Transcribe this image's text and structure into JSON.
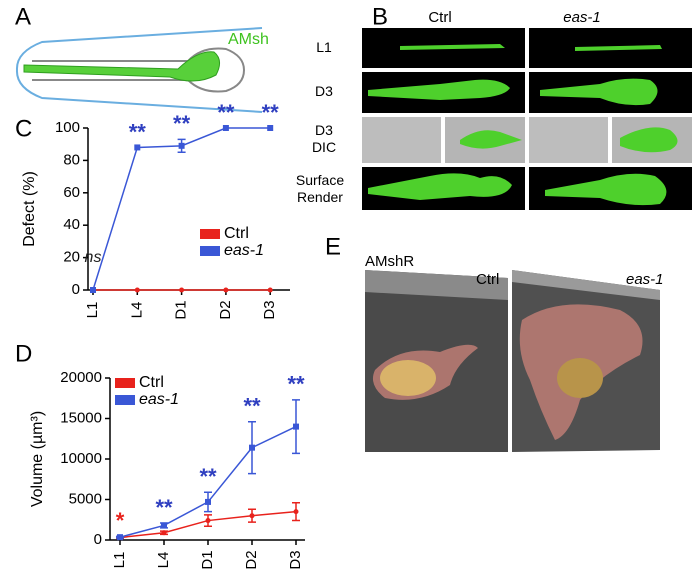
{
  "panel_labels": [
    "A",
    "B",
    "C",
    "D",
    "E"
  ],
  "panel_a": {
    "label": "AMsh"
  },
  "panel_b": {
    "columns": [
      "Ctrl",
      "eas-1"
    ],
    "rows": [
      "L1",
      "D3",
      "D3\nDIC",
      "Surface\nRender"
    ]
  },
  "panel_e": {
    "title": "AMshR",
    "columns": [
      "Ctrl",
      "eas-1"
    ]
  },
  "chart_data": [
    {
      "type": "line",
      "y_label": "Defect (%)",
      "categories": [
        "L1",
        "L4",
        "D1",
        "D2",
        "D3"
      ],
      "series": [
        {
          "name": "Ctrl",
          "color": "#e8221c",
          "values": [
            0,
            0,
            0,
            0,
            0
          ]
        },
        {
          "name": "eas-1",
          "color": "#3a57d6",
          "values": [
            0,
            88,
            89,
            100,
            100
          ],
          "errors": [
            0,
            0,
            4,
            0,
            0
          ]
        }
      ],
      "annotations": [
        {
          "category": "L1",
          "text": "ns",
          "color": "#222222"
        },
        {
          "category": "L4",
          "text": "**",
          "color": "#2f3fc0"
        },
        {
          "category": "D1",
          "text": "**",
          "color": "#2f3fc0"
        },
        {
          "category": "D2",
          "text": "**",
          "color": "#2f3fc0"
        },
        {
          "category": "D3",
          "text": "**",
          "color": "#2f3fc0"
        }
      ],
      "ylim": [
        0,
        100
      ],
      "yticks": [
        0,
        20,
        40,
        60,
        80,
        100
      ],
      "legend": "center right"
    },
    {
      "type": "line",
      "y_label": "Volume (µm³)",
      "categories": [
        "L1",
        "L4",
        "D1",
        "D2",
        "D3"
      ],
      "series": [
        {
          "name": "Ctrl",
          "color": "#e8221c",
          "values": [
            300,
            900,
            2400,
            3000,
            3500
          ],
          "errors": [
            100,
            200,
            700,
            800,
            1100
          ]
        },
        {
          "name": "eas-1",
          "color": "#3a57d6",
          "values": [
            350,
            1800,
            4700,
            11400,
            14000
          ],
          "errors": [
            100,
            300,
            1200,
            3200,
            3300
          ]
        }
      ],
      "annotations": [
        {
          "category": "L1",
          "text": "*",
          "color": "#e8221c"
        },
        {
          "category": "L4",
          "text": "**",
          "color": "#2f3fc0"
        },
        {
          "category": "D1",
          "text": "**",
          "color": "#2f3fc0"
        },
        {
          "category": "D2",
          "text": "**",
          "color": "#2f3fc0"
        },
        {
          "category": "D3",
          "text": "**",
          "color": "#2f3fc0"
        }
      ],
      "ylim": [
        0,
        20000
      ],
      "yticks": [
        0,
        5000,
        10000,
        15000,
        20000
      ],
      "legend": "upper left"
    }
  ]
}
